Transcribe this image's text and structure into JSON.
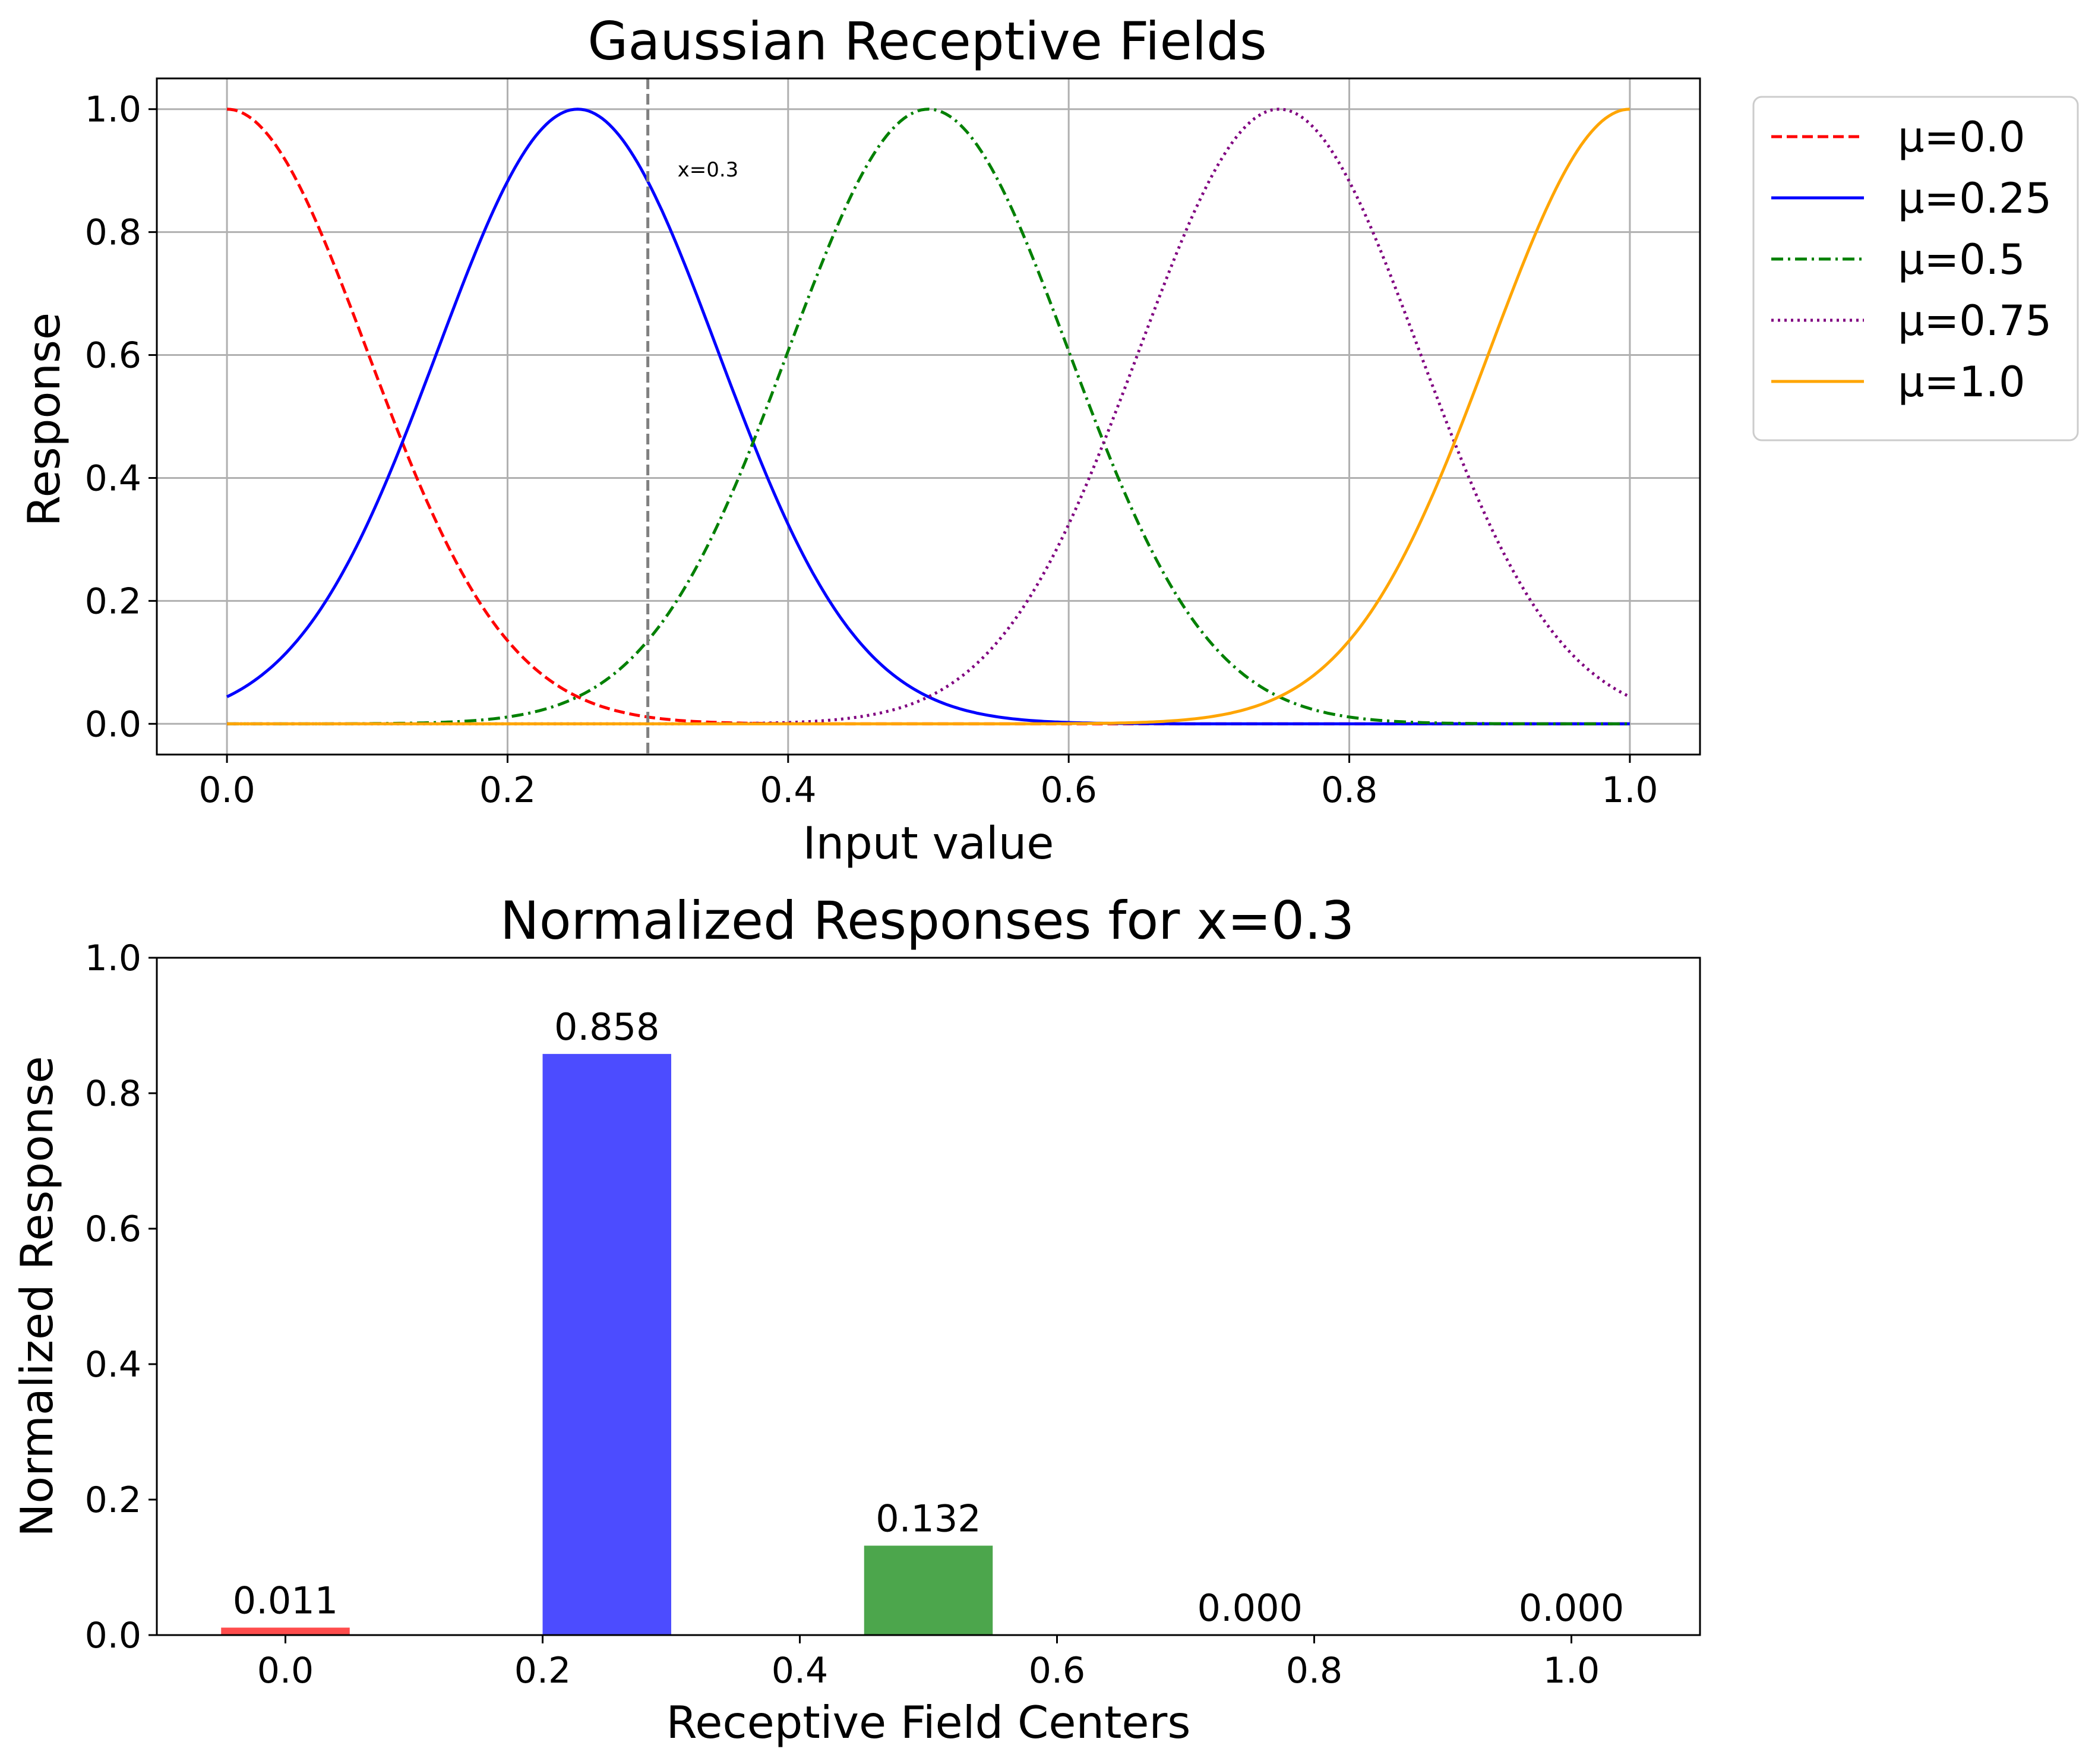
{
  "chart_data": [
    {
      "type": "line",
      "title": "Gaussian Receptive Fields",
      "xlabel": "Input value",
      "ylabel": "Response",
      "xlim": [
        -0.05,
        1.05
      ],
      "ylim": [
        -0.05,
        1.05
      ],
      "xticks": [
        "0.0",
        "0.2",
        "0.4",
        "0.6",
        "0.8",
        "1.0"
      ],
      "yticks": [
        "0.0",
        "0.2",
        "0.4",
        "0.6",
        "0.8",
        "1.0"
      ],
      "grid": true,
      "legend_position": "outside-right",
      "series": [
        {
          "name": "μ=0.0",
          "mu": 0.0,
          "sigma": 0.1,
          "color": "#ff0000",
          "style": "dashed"
        },
        {
          "name": "μ=0.25",
          "mu": 0.25,
          "sigma": 0.1,
          "color": "#0000ff",
          "style": "solid"
        },
        {
          "name": "μ=0.5",
          "mu": 0.5,
          "sigma": 0.1,
          "color": "#008000",
          "style": "dashdot"
        },
        {
          "name": "μ=0.75",
          "mu": 0.75,
          "sigma": 0.1,
          "color": "#800080",
          "style": "dotted"
        },
        {
          "name": "μ=1.0",
          "mu": 1.0,
          "sigma": 0.1,
          "color": "#ffa500",
          "style": "solid"
        }
      ],
      "vline": {
        "x": 0.3,
        "label": "x=0.3",
        "color": "#808080",
        "style": "dashed"
      }
    },
    {
      "type": "bar",
      "title": "Normalized Responses for x=0.3",
      "xlabel": "Receptive Field Centers",
      "ylabel": "Normalized Response",
      "xlim": [
        -0.1,
        1.1
      ],
      "ylim": [
        0,
        1.0
      ],
      "xticks": [
        "0.0",
        "0.2",
        "0.4",
        "0.6",
        "0.8",
        "1.0"
      ],
      "yticks": [
        "0.0",
        "0.2",
        "0.4",
        "0.6",
        "0.8",
        "1.0"
      ],
      "grid": false,
      "bar_width": 0.1,
      "x": [
        0.0,
        0.25,
        0.5,
        0.75,
        1.0
      ],
      "values": [
        0.011,
        0.858,
        0.132,
        0.0,
        0.0
      ],
      "labels": [
        "0.011",
        "0.858",
        "0.132",
        "0.000",
        "0.000"
      ],
      "colors": [
        "#ff0000",
        "#0000ff",
        "#008000",
        "#800080",
        "#ffa500"
      ],
      "opacity": 0.7
    }
  ]
}
